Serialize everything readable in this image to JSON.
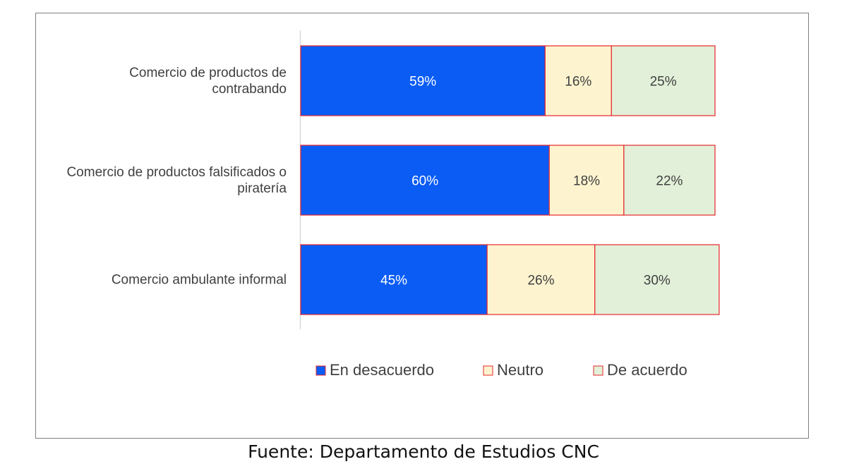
{
  "chart_data": {
    "type": "bar",
    "orientation": "horizontal",
    "stacked": true,
    "categories": [
      [
        "Comercio de productos de",
        "contrabando"
      ],
      [
        "Comercio de productos falsificados o",
        "piratería"
      ],
      [
        "Comercio ambulante informal"
      ]
    ],
    "series": [
      {
        "name": "En desacuerdo",
        "values": [
          59,
          60,
          45
        ],
        "labels": [
          "59%",
          "60%",
          "45%"
        ],
        "color": "#0a5cf5",
        "label_color": "#ffffff"
      },
      {
        "name": "Neutro",
        "values": [
          16,
          18,
          26
        ],
        "labels": [
          "16%",
          "18%",
          "26%"
        ],
        "color": "#fdf4cf",
        "label_color": "#404040"
      },
      {
        "name": "De acuerdo",
        "values": [
          25,
          22,
          30
        ],
        "labels": [
          "25%",
          "22%",
          "30%"
        ],
        "color": "#e2f0d9",
        "label_color": "#404040"
      }
    ],
    "xlim": [
      0,
      100
    ],
    "grid": false,
    "legend_position": "bottom",
    "bar_border_color": "#e8262a",
    "axis_color": "#d9d9d9"
  },
  "source": "Fuente: Departamento de Estudios CNC"
}
